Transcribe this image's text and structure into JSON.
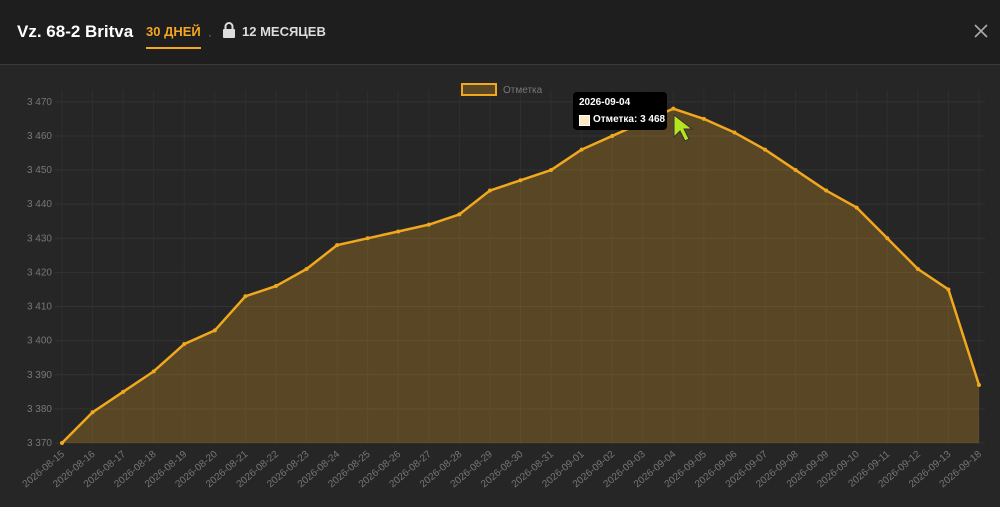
{
  "header": {
    "title": "Vz. 68-2 Britva",
    "tabs": [
      "30 ДНЕЙ",
      "12 МЕСЯЦЕВ"
    ]
  },
  "tooltip": {
    "date": "2026-09-04",
    "text": "Отметка: 3 468"
  },
  "chart_data": {
    "type": "area",
    "categories": [
      "2026-08-15",
      "2026-08-16",
      "2026-08-17",
      "2026-08-18",
      "2026-08-19",
      "2026-08-20",
      "2026-08-21",
      "2026-08-22",
      "2026-08-23",
      "2026-08-24",
      "2026-08-25",
      "2026-08-26",
      "2026-08-27",
      "2026-08-28",
      "2026-08-29",
      "2026-08-30",
      "2026-08-31",
      "2026-09-01",
      "2026-09-02",
      "2026-09-03",
      "2026-09-04",
      "2026-09-05",
      "2026-09-06",
      "2026-09-07",
      "2026-09-08",
      "2026-09-09",
      "2026-09-10",
      "2026-09-11",
      "2026-09-12",
      "2026-09-13",
      "2026-09-18"
    ],
    "series": [
      {
        "name": "Отметка",
        "color": "#f0a81e",
        "values": [
          3370,
          3379,
          3385,
          3391,
          3399,
          3403,
          3413,
          3416,
          3421,
          3428,
          3430,
          3432,
          3434,
          3437,
          3444,
          3447,
          3450,
          3456,
          3460,
          3464,
          3468,
          3465,
          3461,
          3456,
          3450,
          3444,
          3439,
          3430,
          3421,
          3415,
          3387
        ]
      }
    ],
    "ylim": [
      3370,
      3472
    ],
    "yticks": [
      {
        "value": 3370,
        "label": "3 370"
      },
      {
        "value": 3380,
        "label": "3 380"
      },
      {
        "value": 3390,
        "label": "3 390"
      },
      {
        "value": 3400,
        "label": "3 400"
      },
      {
        "value": 3410,
        "label": "3 410"
      },
      {
        "value": 3420,
        "label": "3 420"
      },
      {
        "value": 3430,
        "label": "3 430"
      },
      {
        "value": 3440,
        "label": "3 440"
      },
      {
        "value": 3450,
        "label": "3 450"
      },
      {
        "value": 3460,
        "label": "3 460"
      },
      {
        "value": 3470,
        "label": "3 470"
      }
    ],
    "grid": true,
    "legend": "top"
  }
}
